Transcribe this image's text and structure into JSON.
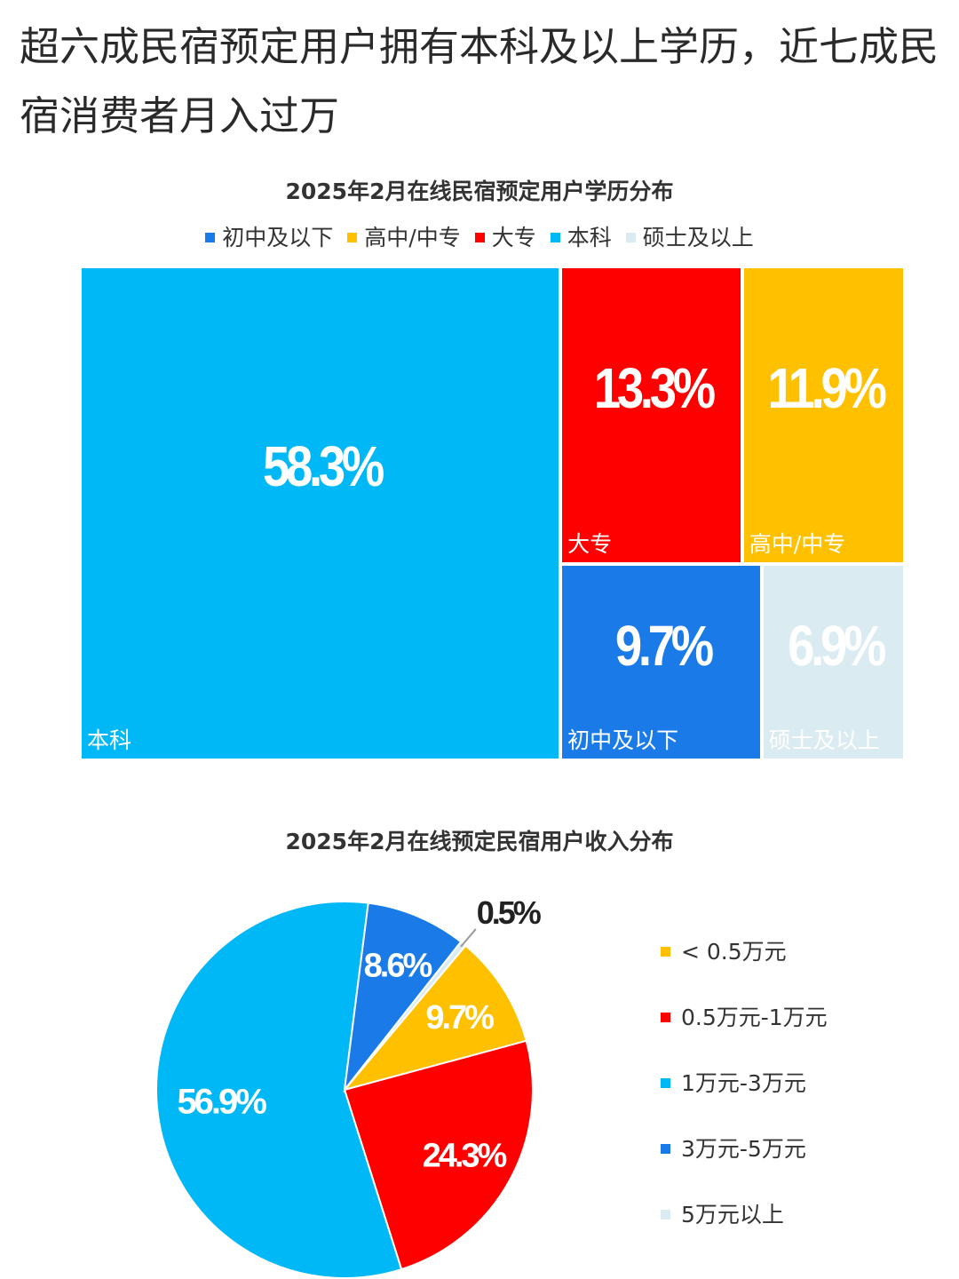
{
  "headline": "超六成民宿预定用户拥有本科及以上学历，近七成民宿消费者月入过万",
  "chart_data": [
    {
      "type": "treemap",
      "title": "2025年2月在线民宿预定用户学历分布",
      "legend_position": "top",
      "legend": [
        {
          "name": "初中及以下",
          "color": "#1a7be8"
        },
        {
          "name": "高中/中专",
          "color": "#ffc000"
        },
        {
          "name": "大专",
          "color": "#ff0000"
        },
        {
          "name": "本科",
          "color": "#00b8f5"
        },
        {
          "name": "硕士及以上",
          "color": "#dbebf2"
        }
      ],
      "items": [
        {
          "name": "本科",
          "value": 58.3,
          "label": "58.3%",
          "color": "#00b8f5"
        },
        {
          "name": "大专",
          "value": 13.3,
          "label": "13.3%",
          "color": "#ff0000"
        },
        {
          "name": "高中/中专",
          "value": 11.9,
          "label": "11.9%",
          "color": "#ffc000"
        },
        {
          "name": "初中及以下",
          "value": 9.7,
          "label": "9.7%",
          "color": "#1a7be8"
        },
        {
          "name": "硕士及以上",
          "value": 6.9,
          "label": "6.9%",
          "color": "#dbebf2"
        }
      ]
    },
    {
      "type": "pie",
      "title": "2025年2月在线预定民宿用户收入分布",
      "legend_position": "right",
      "slices": [
        {
          "name": "< 0.5万元",
          "value": 9.7,
          "label": "9.7%",
          "color": "#ffc000"
        },
        {
          "name": "0.5万元-1万元",
          "value": 24.3,
          "label": "24.3%",
          "color": "#ff0000"
        },
        {
          "name": "1万元-3万元",
          "value": 56.9,
          "label": "56.9%",
          "color": "#00b8f5"
        },
        {
          "name": "3万元-5万元",
          "value": 8.6,
          "label": "8.6%",
          "color": "#1a7be8"
        },
        {
          "name": "5万元以上",
          "value": 0.5,
          "label": "0.5%",
          "color": "#dbebf2"
        }
      ]
    }
  ]
}
